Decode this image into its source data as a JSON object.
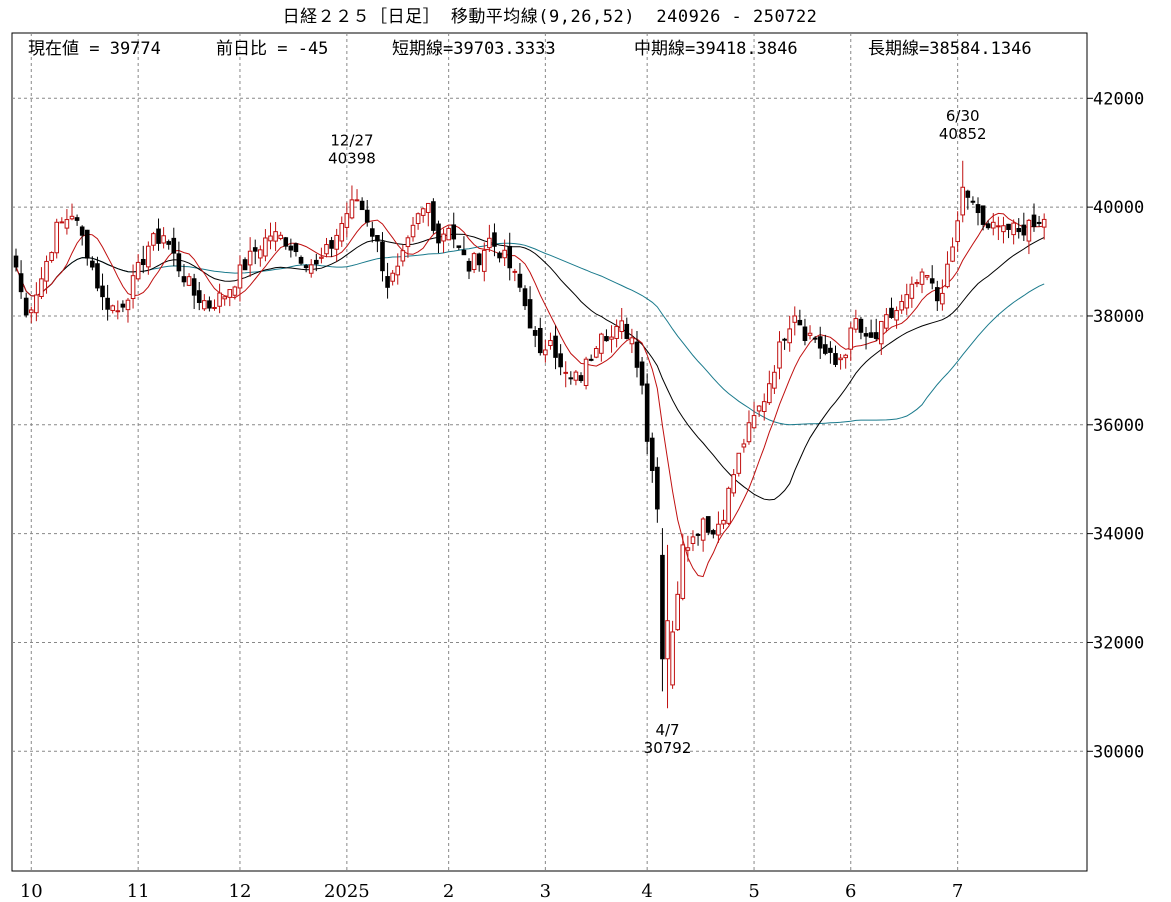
{
  "chart_data": {
    "type": "candlestick",
    "title": "日経２２５［日足］ 移動平均線(9,26,52)  240926 - 250722",
    "stats": [
      {
        "label": "現在値 = 39774"
      },
      {
        "label": "前日比 = -45"
      },
      {
        "label": "短期線=39703.3333"
      },
      {
        "label": "中期線=39418.3846"
      },
      {
        "label": "長期線=38584.1346"
      }
    ],
    "ylim": [
      27800,
      43200
    ],
    "yticks": [
      {
        "value": 30000,
        "label": "30000"
      },
      {
        "value": 32000,
        "label": "32000"
      },
      {
        "value": 34000,
        "label": "34000"
      },
      {
        "value": 36000,
        "label": "36000"
      },
      {
        "value": 38000,
        "label": "38000"
      },
      {
        "value": 40000,
        "label": "40000"
      },
      {
        "value": 42000,
        "label": "42000"
      }
    ],
    "xticks": [
      {
        "label": "10",
        "index": 3
      },
      {
        "label": "11",
        "index": 24
      },
      {
        "label": "12",
        "index": 44
      },
      {
        "label": "2025",
        "index": 65
      },
      {
        "label": "2",
        "index": 85
      },
      {
        "label": "3",
        "index": 104
      },
      {
        "label": "4",
        "index": 124
      },
      {
        "label": "5",
        "index": 145
      },
      {
        "label": "6",
        "index": 164
      },
      {
        "label": "7",
        "index": 185
      }
    ],
    "annotations": [
      {
        "date": "12/27",
        "value": "40398",
        "index": 66,
        "price": 40398,
        "side": "above"
      },
      {
        "date": "4/7",
        "value": "30792",
        "index": 128,
        "price": 30792,
        "side": "below"
      },
      {
        "date": "6/30",
        "value": "40852",
        "index": 186,
        "price": 40852,
        "side": "above"
      }
    ],
    "anchors": [
      [
        0,
        38900
      ],
      [
        2,
        38000
      ],
      [
        5,
        38700
      ],
      [
        8,
        39600
      ],
      [
        11,
        39900
      ],
      [
        14,
        39200
      ],
      [
        17,
        38300
      ],
      [
        20,
        38100
      ],
      [
        23,
        38600
      ],
      [
        26,
        39300
      ],
      [
        29,
        39500
      ],
      [
        32,
        38900
      ],
      [
        35,
        38400
      ],
      [
        38,
        38200
      ],
      [
        41,
        38400
      ],
      [
        44,
        38800
      ],
      [
        47,
        39200
      ],
      [
        50,
        39500
      ],
      [
        53,
        39400
      ],
      [
        56,
        39100
      ],
      [
        59,
        38900
      ],
      [
        62,
        39300
      ],
      [
        65,
        39900
      ],
      [
        67,
        40150
      ],
      [
        69,
        39800
      ],
      [
        71,
        39300
      ],
      [
        73,
        38600
      ],
      [
        75,
        38800
      ],
      [
        77,
        39300
      ],
      [
        79,
        39800
      ],
      [
        81,
        40050
      ],
      [
        83,
        39400
      ],
      [
        85,
        39700
      ],
      [
        87,
        39200
      ],
      [
        89,
        38900
      ],
      [
        91,
        39100
      ],
      [
        93,
        39400
      ],
      [
        95,
        39200
      ],
      [
        97,
        38900
      ],
      [
        99,
        38500
      ],
      [
        101,
        37900
      ],
      [
        103,
        37200
      ],
      [
        105,
        37700
      ],
      [
        107,
        37000
      ],
      [
        109,
        36800
      ],
      [
        111,
        36900
      ],
      [
        113,
        37300
      ],
      [
        115,
        37800
      ],
      [
        117,
        37600
      ],
      [
        119,
        37800
      ],
      [
        121,
        37600
      ],
      [
        123,
        36800
      ],
      [
        124,
        35700
      ],
      [
        125,
        35300
      ],
      [
        126,
        34500
      ],
      [
        127,
        33500
      ],
      [
        128,
        31400
      ],
      [
        129,
        32100
      ],
      [
        130,
        33000
      ],
      [
        131,
        33900
      ],
      [
        133,
        33900
      ],
      [
        135,
        34300
      ],
      [
        137,
        34000
      ],
      [
        139,
        34400
      ],
      [
        141,
        35100
      ],
      [
        143,
        35700
      ],
      [
        145,
        36100
      ],
      [
        147,
        36500
      ],
      [
        149,
        37100
      ],
      [
        151,
        37700
      ],
      [
        153,
        38100
      ],
      [
        155,
        37700
      ],
      [
        157,
        37600
      ],
      [
        159,
        37300
      ],
      [
        161,
        37100
      ],
      [
        163,
        37400
      ],
      [
        165,
        37900
      ],
      [
        167,
        37500
      ],
      [
        169,
        37600
      ],
      [
        171,
        37900
      ],
      [
        173,
        38100
      ],
      [
        175,
        38300
      ],
      [
        177,
        38600
      ],
      [
        179,
        38700
      ],
      [
        181,
        38300
      ],
      [
        183,
        38800
      ],
      [
        185,
        39700
      ],
      [
        186,
        40400
      ],
      [
        187,
        40100
      ],
      [
        189,
        39900
      ],
      [
        191,
        39500
      ],
      [
        193,
        39800
      ],
      [
        195,
        39600
      ],
      [
        197,
        39500
      ],
      [
        199,
        39700
      ],
      [
        201,
        39800
      ],
      [
        202,
        39774
      ]
    ]
  }
}
